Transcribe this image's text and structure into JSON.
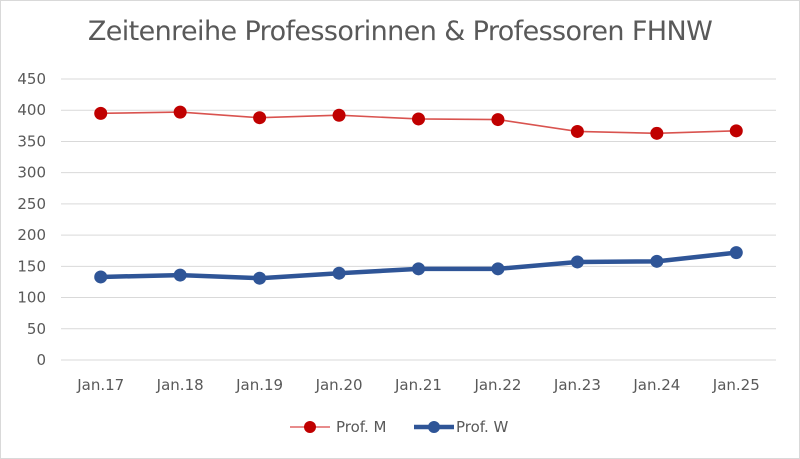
{
  "chart_data": {
    "type": "line",
    "title": "Zeitenreihe Professorinnen & Professoren FHNW",
    "xlabel": "",
    "ylabel": "",
    "categories": [
      "Jan.17",
      "Jan.18",
      "Jan.19",
      "Jan.20",
      "Jan.21",
      "Jan.22",
      "Jan.23",
      "Jan.24",
      "Jan.25"
    ],
    "series": [
      {
        "name": "Prof. M",
        "color": "#c00000",
        "values": [
          395,
          397,
          388,
          392,
          386,
          385,
          366,
          363,
          367
        ]
      },
      {
        "name": "Prof. W",
        "color": "#2f5597",
        "values": [
          133,
          136,
          131,
          139,
          146,
          146,
          157,
          158,
          172
        ]
      }
    ],
    "ylim": [
      0,
      450
    ],
    "yticks": [
      0,
      50,
      100,
      150,
      200,
      250,
      300,
      350,
      400,
      450
    ],
    "grid": true,
    "legend_position": "bottom"
  },
  "legend": {
    "items": [
      {
        "label": "Prof. M"
      },
      {
        "label": "Prof. W"
      }
    ]
  }
}
